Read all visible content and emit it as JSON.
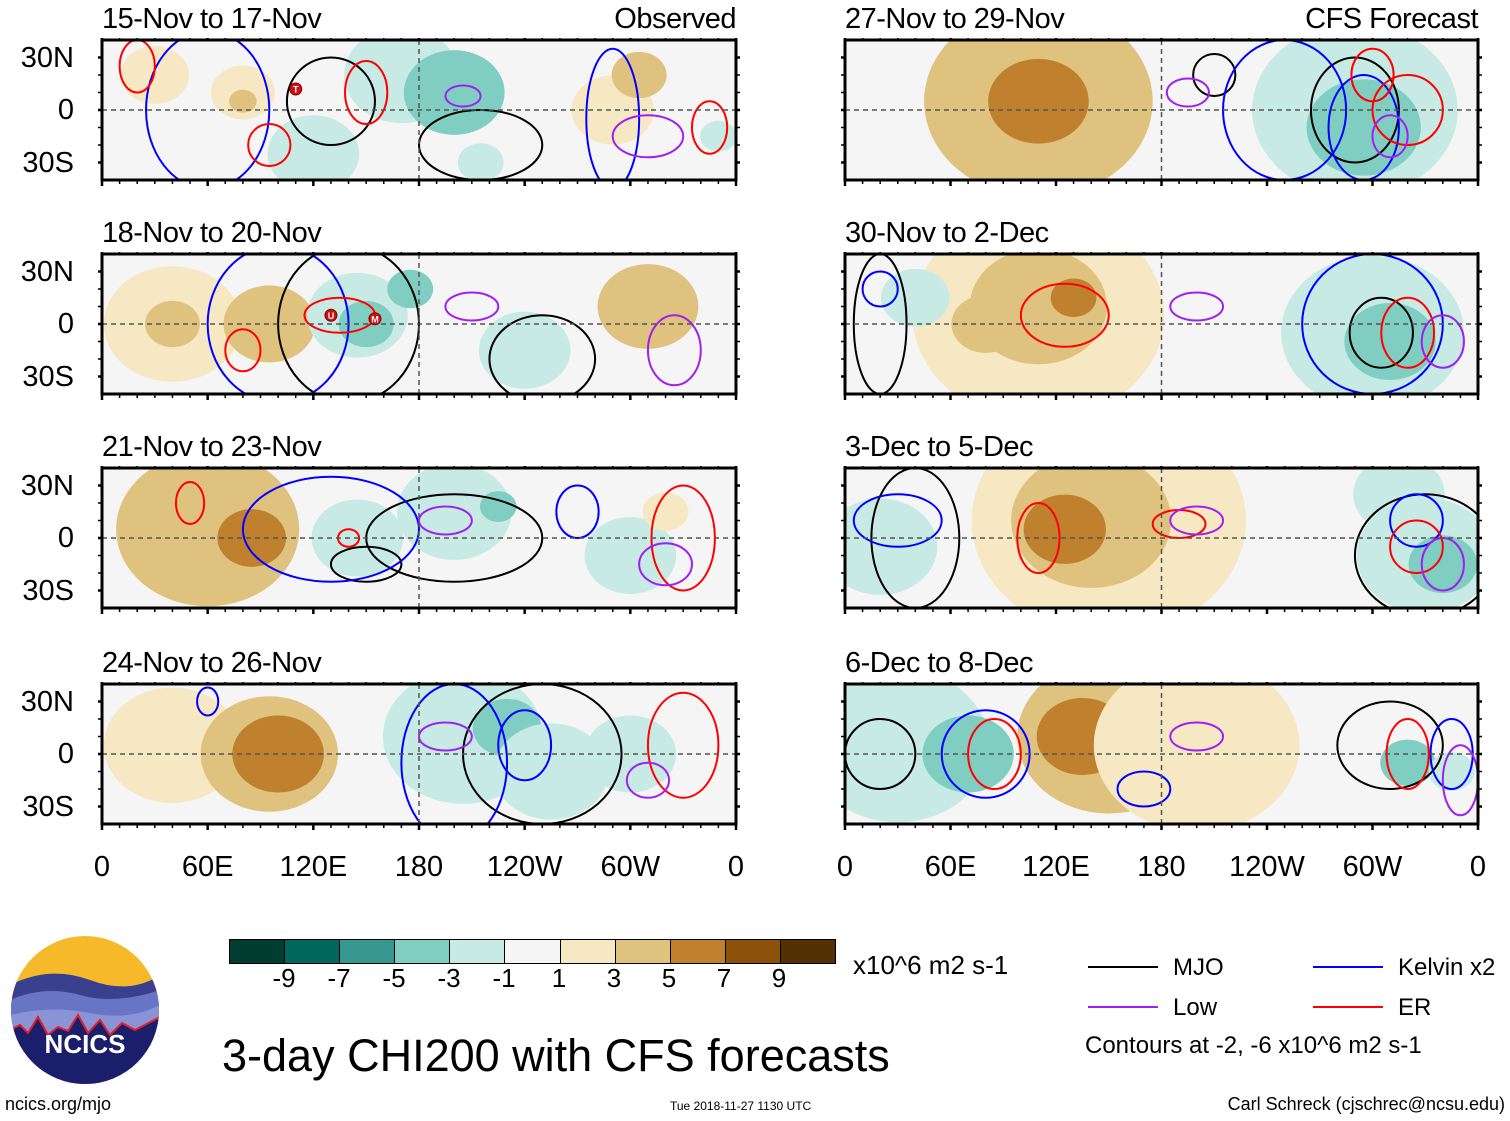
{
  "chart_data": {
    "type": "heatmap",
    "title": "3-day CHI200 with CFS forecasts",
    "units": "x10^6 m2 s-1",
    "xlabel": "",
    "ylabel": "",
    "x_tick_labels": [
      "0",
      "60E",
      "120E",
      "180",
      "120W",
      "60W",
      "0"
    ],
    "y_tick_labels": [
      "30N",
      "0",
      "30S"
    ],
    "xlim_deg_east": [
      0,
      360
    ],
    "ylim_deg": [
      -40,
      40
    ],
    "colorbar": {
      "levels": [
        -9,
        -7,
        -5,
        -3,
        -1,
        1,
        3,
        5,
        7,
        9
      ],
      "colors": [
        "#003c30",
        "#01665e",
        "#35978f",
        "#80cdc1",
        "#c7eae5",
        "#f5f5f5",
        "#f6e8c3",
        "#dfc27d",
        "#bf812d",
        "#8c510a",
        "#543005"
      ]
    },
    "contour_legend": [
      {
        "name": "MJO",
        "color": "#000000"
      },
      {
        "name": "Kelvin x2",
        "color": "#0000ff"
      },
      {
        "name": "Low",
        "color": "#a020f0"
      },
      {
        "name": "ER",
        "color": "#ff0000"
      }
    ],
    "contour_note": "Contours at -2, -6 x10^6 m2 s-1",
    "panels": [
      {
        "id": "p1",
        "title": "15-Nov to 17-Nov",
        "tag": "Observed",
        "column": "left",
        "blobs": [
          [
            30,
            20,
            15,
            1
          ],
          [
            80,
            10,
            14,
            2
          ],
          [
            80,
            5,
            6,
            4
          ],
          [
            170,
            20,
            25,
            -3
          ],
          [
            200,
            10,
            22,
            -4
          ],
          [
            205,
            8,
            7,
            -5
          ],
          [
            290,
            0,
            18,
            2
          ],
          [
            305,
            20,
            12,
            3
          ],
          [
            120,
            -25,
            20,
            -2
          ],
          [
            215,
            -30,
            10,
            -3
          ],
          [
            350,
            -15,
            8,
            -3
          ]
        ],
        "contours": [
          [
            130,
            5,
            25,
            25,
            "mjo"
          ],
          [
            215,
            -20,
            35,
            20,
            "mjo"
          ],
          [
            60,
            0,
            35,
            45,
            "kelvin"
          ],
          [
            290,
            -5,
            15,
            40,
            "kelvin"
          ],
          [
            20,
            25,
            10,
            15,
            "er"
          ],
          [
            150,
            10,
            12,
            18,
            "er"
          ],
          [
            95,
            -20,
            12,
            12,
            "er"
          ],
          [
            345,
            -10,
            10,
            15,
            "er"
          ],
          [
            205,
            8,
            10,
            6,
            "low"
          ],
          [
            310,
            -15,
            20,
            12,
            "low"
          ]
        ],
        "cyclones": [
          {
            "label": "T",
            "lon": 110,
            "lat": 12
          }
        ]
      },
      {
        "id": "p2",
        "title": "18-Nov to 20-Nov",
        "tag": "",
        "column": "left",
        "blobs": [
          [
            40,
            0,
            30,
            2
          ],
          [
            40,
            0,
            12,
            3
          ],
          [
            95,
            0,
            20,
            3
          ],
          [
            95,
            0,
            8,
            4
          ],
          [
            145,
            5,
            22,
            -3
          ],
          [
            150,
            0,
            12,
            -4
          ],
          [
            175,
            20,
            10,
            -4
          ],
          [
            310,
            10,
            22,
            3
          ],
          [
            320,
            15,
            10,
            4
          ],
          [
            240,
            -15,
            20,
            -2
          ]
        ],
        "contours": [
          [
            140,
            0,
            40,
            45,
            "mjo"
          ],
          [
            250,
            -20,
            30,
            25,
            "mjo"
          ],
          [
            100,
            0,
            40,
            45,
            "kelvin"
          ],
          [
            135,
            5,
            20,
            10,
            "er"
          ],
          [
            80,
            -15,
            10,
            12,
            "er"
          ],
          [
            210,
            10,
            15,
            8,
            "low"
          ],
          [
            325,
            -15,
            15,
            20,
            "low"
          ]
        ],
        "cyclones": [
          {
            "label": "U",
            "lon": 130,
            "lat": 5
          },
          {
            "label": "M",
            "lon": 155,
            "lat": 3
          }
        ]
      },
      {
        "id": "p3",
        "title": "21-Nov to 23-Nov",
        "tag": "",
        "column": "left",
        "blobs": [
          [
            60,
            5,
            40,
            3
          ],
          [
            75,
            -5,
            25,
            4
          ],
          [
            85,
            0,
            15,
            5
          ],
          [
            145,
            0,
            20,
            -3
          ],
          [
            200,
            15,
            25,
            -3
          ],
          [
            225,
            18,
            8,
            -5
          ],
          [
            300,
            -10,
            20,
            -2
          ],
          [
            320,
            15,
            10,
            2
          ]
        ],
        "contours": [
          [
            200,
            0,
            50,
            25,
            "mjo"
          ],
          [
            150,
            -15,
            20,
            10,
            "mjo"
          ],
          [
            130,
            5,
            50,
            30,
            "kelvin"
          ],
          [
            270,
            15,
            12,
            15,
            "kelvin"
          ],
          [
            50,
            20,
            8,
            12,
            "er"
          ],
          [
            140,
            0,
            6,
            5,
            "er"
          ],
          [
            330,
            0,
            18,
            30,
            "er"
          ],
          [
            195,
            10,
            15,
            8,
            "low"
          ],
          [
            320,
            -15,
            15,
            12,
            "low"
          ]
        ],
        "cyclones": []
      },
      {
        "id": "p4",
        "title": "24-Nov to 26-Nov",
        "tag": "",
        "column": "left",
        "blobs": [
          [
            40,
            5,
            30,
            1
          ],
          [
            95,
            0,
            30,
            3
          ],
          [
            100,
            0,
            20,
            5
          ],
          [
            205,
            10,
            35,
            -3
          ],
          [
            230,
            15,
            15,
            -5
          ],
          [
            255,
            -10,
            25,
            -3
          ],
          [
            300,
            0,
            20,
            -2
          ]
        ],
        "contours": [
          [
            250,
            0,
            45,
            40,
            "mjo"
          ],
          [
            200,
            -5,
            30,
            45,
            "kelvin"
          ],
          [
            240,
            5,
            15,
            20,
            "kelvin"
          ],
          [
            60,
            30,
            6,
            8,
            "kelvin"
          ],
          [
            330,
            5,
            20,
            30,
            "er"
          ],
          [
            195,
            10,
            15,
            8,
            "low"
          ],
          [
            310,
            -15,
            12,
            10,
            "low"
          ]
        ],
        "cyclones": []
      },
      {
        "id": "p5",
        "title": "27-Nov to 29-Nov",
        "tag": "CFS Forecast",
        "column": "right",
        "blobs": [
          [
            110,
            5,
            50,
            3
          ],
          [
            100,
            10,
            35,
            4
          ],
          [
            110,
            5,
            22,
            5
          ],
          [
            200,
            -10,
            20,
            -1
          ],
          [
            290,
            0,
            45,
            -3
          ],
          [
            295,
            -10,
            25,
            -5
          ],
          [
            285,
            -15,
            10,
            -5
          ]
        ],
        "contours": [
          [
            290,
            0,
            25,
            30,
            "mjo"
          ],
          [
            210,
            20,
            12,
            12,
            "mjo"
          ],
          [
            250,
            0,
            35,
            40,
            "kelvin"
          ],
          [
            295,
            -10,
            20,
            30,
            "kelvin"
          ],
          [
            300,
            20,
            12,
            15,
            "er"
          ],
          [
            320,
            0,
            20,
            20,
            "er"
          ],
          [
            195,
            10,
            12,
            8,
            "low"
          ],
          [
            310,
            -15,
            10,
            12,
            "low"
          ]
        ],
        "cyclones": []
      },
      {
        "id": "p6",
        "title": "30-Nov to 2-Dec",
        "tag": "",
        "column": "right",
        "blobs": [
          [
            110,
            5,
            55,
            2
          ],
          [
            110,
            10,
            30,
            3
          ],
          [
            80,
            0,
            15,
            4
          ],
          [
            130,
            15,
            10,
            5
          ],
          [
            300,
            -5,
            40,
            -3
          ],
          [
            310,
            -10,
            20,
            -5
          ],
          [
            40,
            15,
            15,
            -2
          ]
        ],
        "contours": [
          [
            305,
            -5,
            18,
            20,
            "mjo"
          ],
          [
            20,
            0,
            15,
            40,
            "mjo"
          ],
          [
            300,
            0,
            40,
            40,
            "kelvin"
          ],
          [
            20,
            20,
            10,
            10,
            "kelvin"
          ],
          [
            125,
            5,
            25,
            18,
            "er"
          ],
          [
            320,
            -5,
            15,
            20,
            "er"
          ],
          [
            200,
            10,
            15,
            8,
            "low"
          ],
          [
            340,
            -10,
            12,
            15,
            "low"
          ]
        ],
        "cyclones": []
      },
      {
        "id": "p7",
        "title": "3-Dec to 5-Dec",
        "tag": "",
        "column": "right",
        "blobs": [
          [
            150,
            10,
            60,
            2
          ],
          [
            140,
            10,
            35,
            3
          ],
          [
            125,
            5,
            18,
            5
          ],
          [
            20,
            -5,
            25,
            -3
          ],
          [
            330,
            -10,
            30,
            -3
          ],
          [
            340,
            -15,
            15,
            -5
          ],
          [
            315,
            25,
            20,
            -2
          ]
        ],
        "contours": [
          [
            330,
            -10,
            40,
            35,
            "mjo"
          ],
          [
            40,
            0,
            25,
            40,
            "mjo"
          ],
          [
            30,
            10,
            25,
            15,
            "kelvin"
          ],
          [
            325,
            10,
            15,
            15,
            "kelvin"
          ],
          [
            110,
            0,
            12,
            20,
            "er"
          ],
          [
            325,
            -5,
            15,
            15,
            "er"
          ],
          [
            190,
            8,
            15,
            8,
            "er"
          ],
          [
            200,
            10,
            15,
            8,
            "low"
          ],
          [
            340,
            -15,
            12,
            15,
            "low"
          ]
        ],
        "cyclones": []
      },
      {
        "id": "p8",
        "title": "6-Dec to 8-Dec",
        "tag": "",
        "column": "right",
        "blobs": [
          [
            30,
            5,
            40,
            -3
          ],
          [
            70,
            0,
            20,
            -4
          ],
          [
            150,
            10,
            40,
            3
          ],
          [
            135,
            10,
            20,
            5
          ],
          [
            200,
            5,
            45,
            2
          ],
          [
            320,
            -5,
            12,
            -4
          ],
          [
            345,
            -10,
            10,
            -3
          ]
        ],
        "contours": [
          [
            20,
            0,
            20,
            20,
            "mjo"
          ],
          [
            310,
            5,
            30,
            25,
            "mjo"
          ],
          [
            80,
            0,
            25,
            25,
            "kelvin"
          ],
          [
            170,
            -20,
            15,
            10,
            "kelvin"
          ],
          [
            345,
            0,
            12,
            20,
            "kelvin"
          ],
          [
            85,
            0,
            15,
            20,
            "er"
          ],
          [
            320,
            0,
            12,
            20,
            "er"
          ],
          [
            200,
            10,
            15,
            8,
            "low"
          ],
          [
            350,
            -15,
            10,
            20,
            "low"
          ]
        ],
        "cyclones": []
      }
    ]
  },
  "logo": {
    "text": "NCICS"
  },
  "footer": {
    "url": "ncics.org/mjo",
    "timestamp": "Tue 2018-11-27 1130 UTC",
    "author": "Carl Schreck (cjschrec@ncsu.edu)"
  }
}
